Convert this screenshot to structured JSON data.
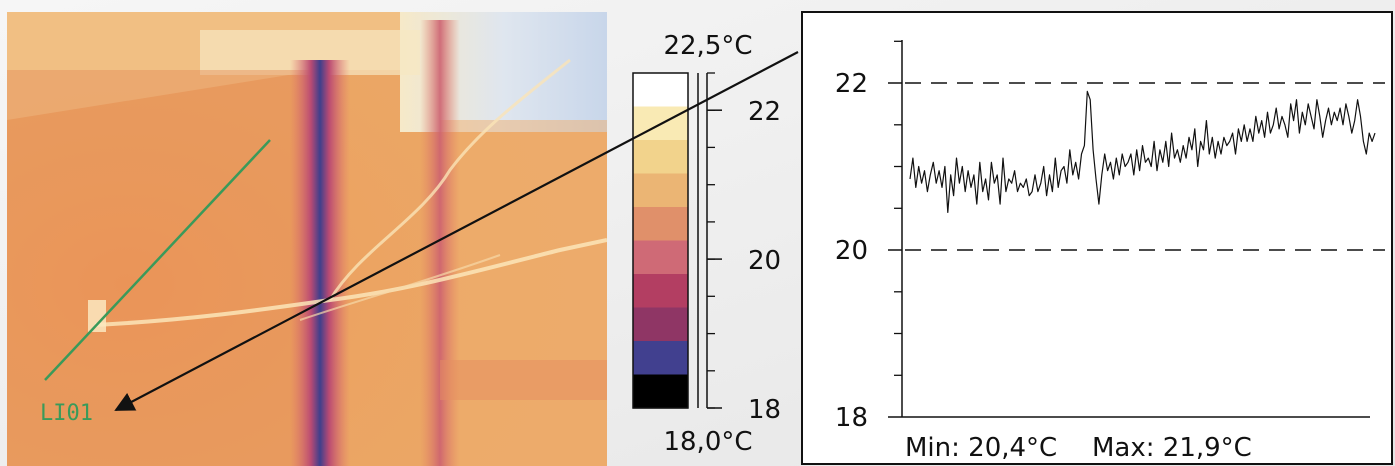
{
  "thermal_image": {
    "line_label": "LI01",
    "line_color": "#3a9a5a"
  },
  "color_scale": {
    "max_label": "22,5°C",
    "min_label": "18,0°C",
    "range": [
      18.0,
      22.5
    ],
    "ticks": [
      {
        "value": 22,
        "label": "22"
      },
      {
        "value": 20,
        "label": "20"
      },
      {
        "value": 18,
        "label": "18"
      }
    ],
    "bands_top_to_bottom": [
      "#ffffff",
      "#f9eab4",
      "#f2d38c",
      "#ebb574",
      "#e0906a",
      "#cf6a76",
      "#b33e62",
      "#8f3665",
      "#41408f",
      "#000000"
    ]
  },
  "chart_data": {
    "type": "line",
    "title": "",
    "xlabel": "",
    "ylabel": "",
    "ylim": [
      18,
      22.6
    ],
    "y_ticks": [
      {
        "value": 22,
        "label": "22"
      },
      {
        "value": 20,
        "label": "20"
      },
      {
        "value": 18,
        "label": "18"
      }
    ],
    "minor_y_ticks": [
      22.5,
      21.5,
      21.0,
      20.5,
      19.5,
      19.0,
      18.5
    ],
    "dashed_gridlines": [
      22,
      20
    ],
    "grid": false,
    "series": [
      {
        "values": [
          20.85,
          21.1,
          20.75,
          21.0,
          20.8,
          20.95,
          20.7,
          20.9,
          21.05,
          20.8,
          20.95,
          20.75,
          21.0,
          20.45,
          20.9,
          20.65,
          21.1,
          20.8,
          21.0,
          20.7,
          20.95,
          20.75,
          20.9,
          20.55,
          21.05,
          20.7,
          20.85,
          20.6,
          21.05,
          20.8,
          20.9,
          20.55,
          21.1,
          20.7,
          20.85,
          20.8,
          20.95,
          20.7,
          20.8,
          20.75,
          20.85,
          20.65,
          20.7,
          20.9,
          20.7,
          20.8,
          21.0,
          20.65,
          20.9,
          20.7,
          21.1,
          20.75,
          20.95,
          21.0,
          20.8,
          21.2,
          20.9,
          21.05,
          20.85,
          21.15,
          21.25,
          21.9,
          21.8,
          21.2,
          20.85,
          20.55,
          20.9,
          21.15,
          20.95,
          21.05,
          20.85,
          21.1,
          20.9,
          21.15,
          21.0,
          21.05,
          21.15,
          20.9,
          21.2,
          20.95,
          21.25,
          21.05,
          21.1,
          21.0,
          21.3,
          20.95,
          21.2,
          21.05,
          21.3,
          21.0,
          21.4,
          21.1,
          21.2,
          21.05,
          21.25,
          21.1,
          21.35,
          21.2,
          21.45,
          21.0,
          21.3,
          21.2,
          21.55,
          21.15,
          21.35,
          21.1,
          21.3,
          21.15,
          21.35,
          21.25,
          21.3,
          21.4,
          21.15,
          21.45,
          21.3,
          21.5,
          21.3,
          21.45,
          21.3,
          21.6,
          21.4,
          21.55,
          21.35,
          21.65,
          21.4,
          21.5,
          21.7,
          21.45,
          21.6,
          21.5,
          21.35,
          21.75,
          21.55,
          21.8,
          21.4,
          21.65,
          21.5,
          21.75,
          21.6,
          21.45,
          21.8,
          21.6,
          21.35,
          21.55,
          21.7,
          21.5,
          21.65,
          21.55,
          21.7,
          21.5,
          21.75,
          21.6,
          21.4,
          21.55,
          21.8,
          21.6,
          21.3,
          21.15,
          21.4,
          21.3,
          21.4
        ]
      }
    ],
    "stats_text": {
      "min": "Min: 20,4°C",
      "max": "Max: 21,9°C"
    }
  }
}
